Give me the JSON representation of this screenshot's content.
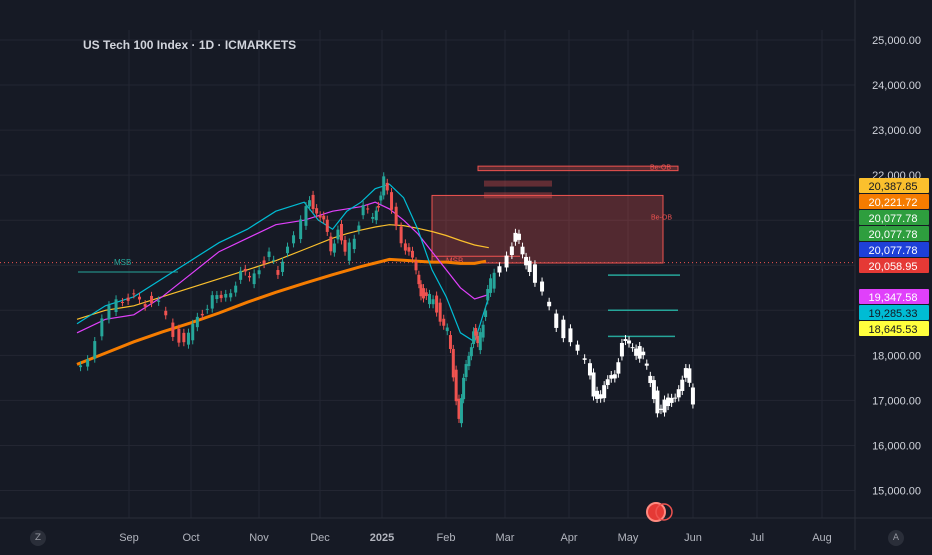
{
  "chart_data": {
    "type": "line",
    "title": "US Tech 100 Index · 1D · ICMARKETS",
    "y_axis": {
      "ticks": [
        "15,000.00",
        "16,000.00",
        "17,000.00",
        "18,000.00",
        "19,000.00",
        "20,000.00",
        "21,000.00",
        "22,000.00",
        "23,000.00",
        "24,000.00",
        "25,000.00"
      ],
      "ylim": [
        14500,
        25150
      ]
    },
    "x_axis": {
      "ticks": [
        "Sep",
        "Oct",
        "Nov",
        "Dec",
        "2025",
        "Feb",
        "Mar",
        "Apr",
        "May",
        "Jun",
        "Jul",
        "Aug"
      ]
    },
    "price_labels": [
      {
        "value": "20,387.85",
        "color": "#fbc02d",
        "text_color": "#131722"
      },
      {
        "value": "20,221.72",
        "color": "#f57c00",
        "text_color": "#ffffff"
      },
      {
        "value": "20,077.78",
        "color": "#2e9e3e",
        "text_color": "#ffffff"
      },
      {
        "value": "20,077.78",
        "color": "#2e9e3e",
        "text_color": "#ffffff"
      },
      {
        "value": "20,077.78",
        "color": "#1e40d8",
        "text_color": "#ffffff"
      },
      {
        "value": "20,058.95",
        "color": "#e53935",
        "text_color": "#ffffff"
      },
      {
        "value": "19,347.58",
        "color": "#e040fb",
        "text_color": "#ffffff"
      },
      {
        "value": "19,285.33",
        "color": "#00bcd4",
        "text_color": "#131722"
      },
      {
        "value": "18,645.53",
        "color": "#ffff3d",
        "text_color": "#131722"
      }
    ],
    "annotations": [
      "MSB",
      "MSB",
      "Be-OB",
      "Be-OB"
    ],
    "corner_buttons": [
      "Z",
      "A"
    ],
    "colors": {
      "up": "#26a69a",
      "down": "#ef5350",
      "projection": "#ffffff",
      "ma200": "#f57c00",
      "ma100": "#fbc02d",
      "ma50": "#e040fb",
      "ma20": "#00bcd4"
    },
    "series": [
      {
        "kind": "price",
        "points": [
          [
            0,
            17700
          ],
          [
            1,
            18000
          ],
          [
            2,
            18700
          ],
          [
            3,
            19300
          ],
          [
            5,
            19200
          ],
          [
            6,
            19100
          ],
          [
            7,
            18500
          ],
          [
            7.7,
            18300
          ],
          [
            8.3,
            18600
          ],
          [
            9,
            19000
          ],
          [
            9.7,
            19300
          ],
          [
            10.3,
            19200
          ],
          [
            11,
            19500
          ],
          [
            11.7,
            19800
          ],
          [
            12.3,
            19700
          ],
          [
            13,
            20000
          ],
          [
            13.7,
            20200
          ],
          [
            14.3,
            19800
          ],
          [
            15,
            20500
          ],
          [
            16,
            20900
          ],
          [
            16.5,
            21500
          ],
          [
            17,
            21200
          ],
          [
            17.5,
            20900
          ],
          [
            18,
            20400
          ],
          [
            18.5,
            20800
          ],
          [
            19,
            20200
          ],
          [
            19.7,
            20700
          ],
          [
            20.3,
            21300
          ],
          [
            21,
            21000
          ],
          [
            21.3,
            21400
          ],
          [
            21.7,
            21900
          ],
          [
            22.3,
            21200
          ],
          [
            23,
            20600
          ],
          [
            23.5,
            20200
          ],
          [
            24,
            19900
          ],
          [
            24.3,
            19400
          ],
          [
            24.7,
            19200
          ],
          [
            25.2,
            19300
          ],
          [
            25.7,
            18800
          ],
          [
            26.2,
            18500
          ],
          [
            26.6,
            17600
          ],
          [
            27,
            16600
          ],
          [
            27.3,
            17400
          ],
          [
            27.7,
            18100
          ],
          [
            28,
            18500
          ],
          [
            28.3,
            18200
          ],
          [
            28.7,
            18800
          ],
          [
            29,
            19400
          ],
          [
            29.5,
            19800
          ]
        ]
      },
      {
        "kind": "projection",
        "points": [
          [
            29.5,
            19800
          ],
          [
            30.5,
            20300
          ],
          [
            31,
            20600
          ],
          [
            31.5,
            20300
          ],
          [
            32,
            19900
          ],
          [
            33,
            19300
          ],
          [
            34,
            18700
          ],
          [
            35,
            18300
          ],
          [
            36,
            17800
          ],
          [
            36.5,
            17200
          ],
          [
            37,
            17100
          ],
          [
            37.5,
            17400
          ],
          [
            38,
            17700
          ],
          [
            38.5,
            18200
          ],
          [
            39,
            18300
          ],
          [
            39.5,
            18100
          ],
          [
            40,
            17900
          ],
          [
            40.5,
            17400
          ],
          [
            41,
            16800
          ],
          [
            41.5,
            16900
          ],
          [
            42,
            17000
          ],
          [
            42.5,
            17300
          ],
          [
            43,
            17600
          ],
          [
            43.5,
            17000
          ]
        ]
      },
      {
        "kind": "ma200",
        "points": [
          [
            0,
            17800
          ],
          [
            2,
            18050
          ],
          [
            4,
            18300
          ],
          [
            6,
            18520
          ],
          [
            8,
            18720
          ],
          [
            10,
            18940
          ],
          [
            12,
            19180
          ],
          [
            14,
            19400
          ],
          [
            16,
            19600
          ],
          [
            18,
            19790
          ],
          [
            20,
            19970
          ],
          [
            21,
            20050
          ],
          [
            22,
            20130
          ],
          [
            23,
            20110
          ],
          [
            24,
            20090
          ],
          [
            25,
            20070
          ],
          [
            26,
            20070
          ],
          [
            27,
            20040
          ],
          [
            28,
            20040
          ],
          [
            28.8,
            20090
          ]
        ]
      },
      {
        "kind": "ma100",
        "points": [
          [
            0,
            18800
          ],
          [
            2,
            19000
          ],
          [
            4,
            19100
          ],
          [
            6,
            19300
          ],
          [
            8,
            19500
          ],
          [
            10,
            19700
          ],
          [
            12,
            19900
          ],
          [
            14,
            20100
          ],
          [
            16,
            20350
          ],
          [
            18,
            20600
          ],
          [
            19,
            20700
          ],
          [
            20,
            20780
          ],
          [
            21,
            20850
          ],
          [
            22,
            20900
          ],
          [
            23,
            20880
          ],
          [
            24,
            20820
          ],
          [
            25,
            20750
          ],
          [
            26,
            20660
          ],
          [
            27,
            20550
          ],
          [
            28,
            20450
          ],
          [
            29,
            20390
          ]
        ]
      },
      {
        "kind": "ma50",
        "points": [
          [
            0,
            18500
          ],
          [
            2,
            18800
          ],
          [
            4,
            18900
          ],
          [
            6,
            19300
          ],
          [
            8,
            19800
          ],
          [
            10,
            20300
          ],
          [
            12,
            20600
          ],
          [
            14,
            20900
          ],
          [
            16,
            21000
          ],
          [
            18,
            21200
          ],
          [
            20,
            21300
          ],
          [
            21,
            21400
          ],
          [
            22,
            21250
          ],
          [
            23,
            21000
          ],
          [
            24,
            20700
          ],
          [
            25,
            20300
          ],
          [
            26,
            19900
          ],
          [
            27,
            19500
          ],
          [
            28,
            19250
          ],
          [
            29,
            19350
          ]
        ]
      },
      {
        "kind": "ma20",
        "points": [
          [
            0,
            18700
          ],
          [
            2,
            19100
          ],
          [
            4,
            19300
          ],
          [
            6,
            19700
          ],
          [
            8,
            20100
          ],
          [
            10,
            20500
          ],
          [
            12,
            20800
          ],
          [
            14,
            21200
          ],
          [
            16,
            21400
          ],
          [
            17,
            21000
          ],
          [
            18,
            20800
          ],
          [
            19,
            21200
          ],
          [
            20,
            21400
          ],
          [
            21,
            21700
          ],
          [
            22,
            21800
          ],
          [
            23,
            21500
          ],
          [
            24,
            20800
          ],
          [
            25,
            19900
          ],
          [
            26,
            19300
          ],
          [
            27,
            18500
          ],
          [
            28,
            18300
          ],
          [
            29,
            19300
          ]
        ]
      }
    ]
  }
}
